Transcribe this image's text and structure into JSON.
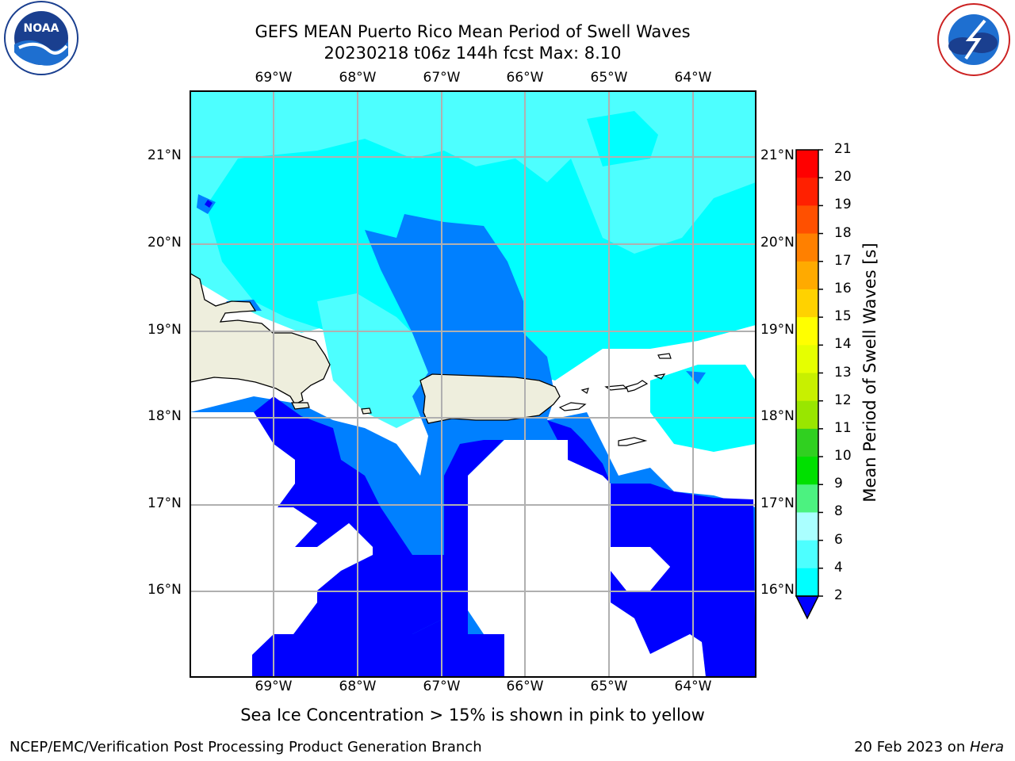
{
  "header": {
    "title_line1": "GEFS MEAN Puerto Rico Mean Period of Swell Waves",
    "title_line2": "20230218 t06z 144h fcst   Max: 8.10"
  },
  "logos": {
    "left": {
      "name": "noaa-logo",
      "text": "NOAA",
      "ring_text": "NATIONAL OCEANIC AND ATMOSPHERIC ADMINISTRATION · U.S. DEPARTMENT OF COMMERCE"
    },
    "right": {
      "name": "nws-logo",
      "ring_text": "NATIONAL WEATHER SERVICE"
    }
  },
  "map": {
    "lon_labels": [
      "69°W",
      "68°W",
      "67°W",
      "66°W",
      "65°W",
      "64°W"
    ],
    "lat_labels": [
      "21°N",
      "20°N",
      "19°N",
      "18°N",
      "17°N",
      "16°N"
    ],
    "colors": {
      "land": "#eeeedd",
      "coast": "#000000",
      "grid": "#b0b0b0"
    },
    "legend_levels": {
      "c2": "#0000ff",
      "c3": "#0080ff",
      "c4": "#00ffff",
      "c5": "#4dffff"
    }
  },
  "colorbar": {
    "title": "Mean Period of Swell Waves [s]",
    "tick_labels": [
      "2",
      "4",
      "6",
      "8",
      "9",
      "10",
      "11",
      "12",
      "13",
      "14",
      "15",
      "16",
      "17",
      "18",
      "19",
      "20",
      "21"
    ],
    "colors": [
      "#0000ff",
      "#0080ff",
      "#00ffff",
      "#4dffff",
      "#aaffff",
      "#4cf280",
      "#00e000",
      "#30d020",
      "#99e600",
      "#c8f000",
      "#e6ff00",
      "#ffff00",
      "#ffd200",
      "#ffaa00",
      "#ff8000",
      "#ff5000",
      "#ff2000",
      "#ff0000"
    ]
  },
  "footer": {
    "subtitle": "Sea Ice Concentration > 15% is shown in pink to yellow",
    "left": "NCEP/EMC/Verification Post Processing Product Generation Branch",
    "right_date": "20 Feb 2023 on ",
    "right_machine": "Hera"
  }
}
